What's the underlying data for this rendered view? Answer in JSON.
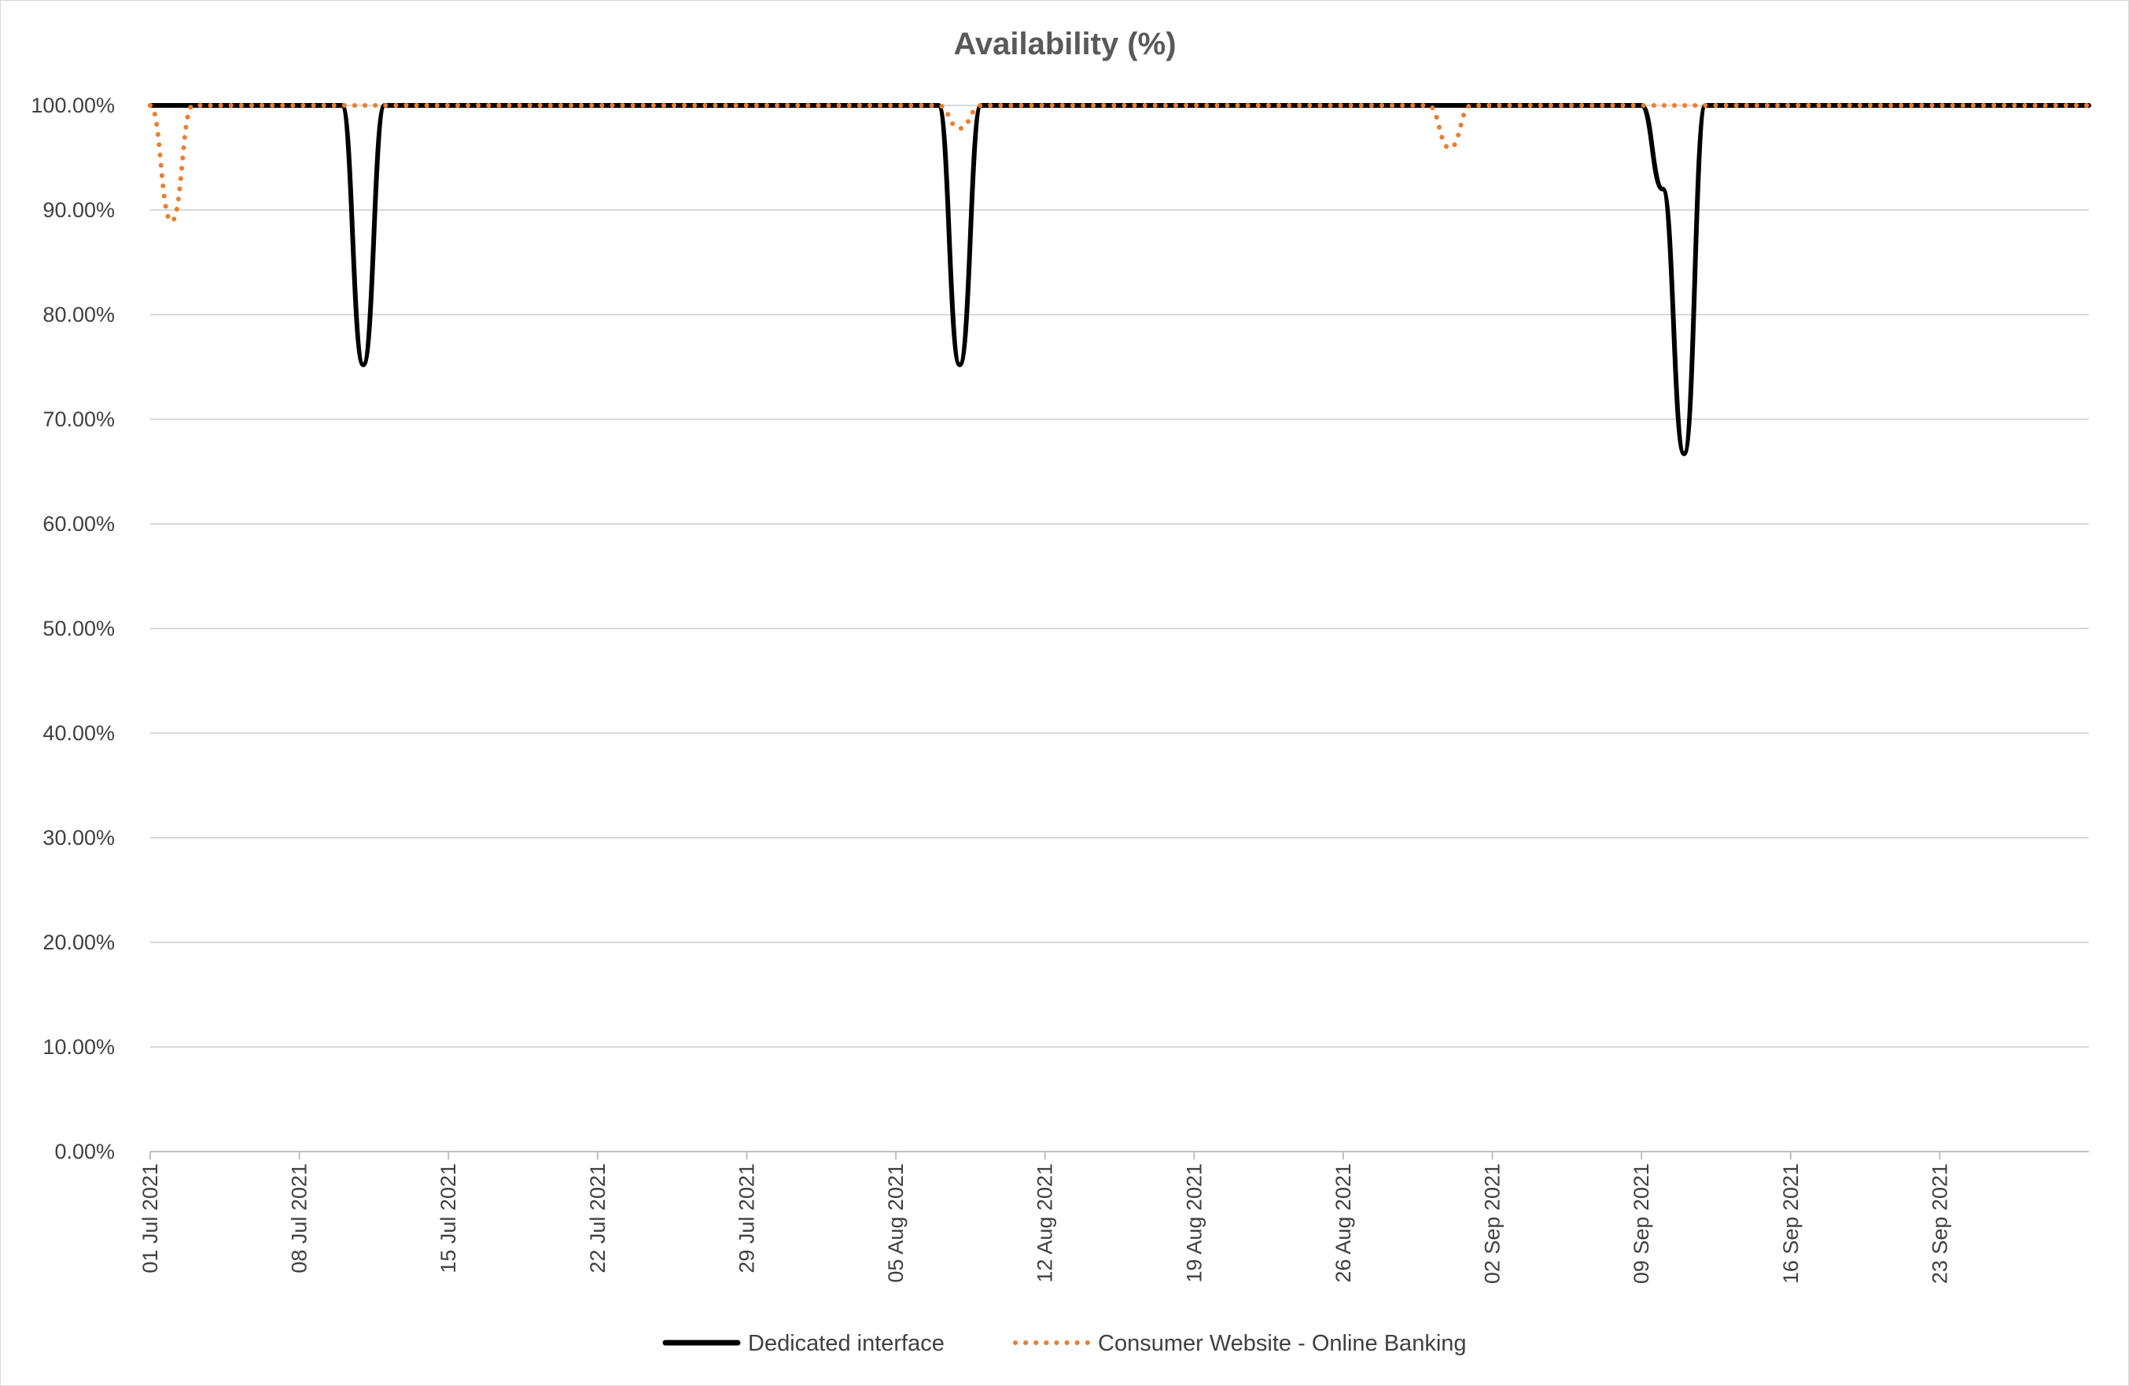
{
  "chart_data": {
    "type": "line",
    "title": "Availability (%)",
    "xlabel": "",
    "ylabel": "",
    "ylim": [
      0,
      100
    ],
    "yticks": [
      0,
      10,
      20,
      30,
      40,
      50,
      60,
      70,
      80,
      90,
      100
    ],
    "ytick_labels": [
      "0.00%",
      "10.00%",
      "20.00%",
      "30.00%",
      "40.00%",
      "50.00%",
      "60.00%",
      "70.00%",
      "80.00%",
      "90.00%",
      "100.00%"
    ],
    "xlim": [
      "2021-07-01",
      "2021-09-30"
    ],
    "xticks": [
      "2021-07-01",
      "2021-07-08",
      "2021-07-15",
      "2021-07-22",
      "2021-07-29",
      "2021-08-05",
      "2021-08-12",
      "2021-08-19",
      "2021-08-26",
      "2021-09-02",
      "2021-09-09",
      "2021-09-16",
      "2021-09-23"
    ],
    "xtick_labels": [
      "01 Jul 2021",
      "08 Jul 2021",
      "15 Jul 2021",
      "22 Jul 2021",
      "29 Jul 2021",
      "05 Aug 2021",
      "12 Aug 2021",
      "19 Aug 2021",
      "26 Aug 2021",
      "02 Sep 2021",
      "09 Sep 2021",
      "16 Sep 2021",
      "23 Sep 2021"
    ],
    "grid": "horizontal",
    "legend_position": "bottom",
    "series": [
      {
        "name": "Dedicated interface",
        "color": "#000000",
        "style": "solid",
        "points": [
          [
            "2021-07-01",
            100
          ],
          [
            "2021-07-10",
            100
          ],
          [
            "2021-07-11",
            75.2
          ],
          [
            "2021-07-12",
            100
          ],
          [
            "2021-08-07",
            100
          ],
          [
            "2021-08-08",
            75.2
          ],
          [
            "2021-08-09",
            100
          ],
          [
            "2021-09-09",
            100
          ],
          [
            "2021-09-10",
            92
          ],
          [
            "2021-09-11",
            66.7
          ],
          [
            "2021-09-12",
            100
          ],
          [
            "2021-09-30",
            100
          ]
        ]
      },
      {
        "name": "Consumer Website - Online Banking",
        "color": "#ed7d31",
        "style": "dotted",
        "points": [
          [
            "2021-07-01",
            100
          ],
          [
            "2021-07-02",
            88.9
          ],
          [
            "2021-07-03",
            100
          ],
          [
            "2021-08-07",
            100
          ],
          [
            "2021-08-08",
            97.8
          ],
          [
            "2021-08-09",
            100
          ],
          [
            "2021-08-30",
            100
          ],
          [
            "2021-08-31",
            95.9
          ],
          [
            "2021-09-01",
            100
          ],
          [
            "2021-09-30",
            100
          ]
        ]
      }
    ]
  }
}
